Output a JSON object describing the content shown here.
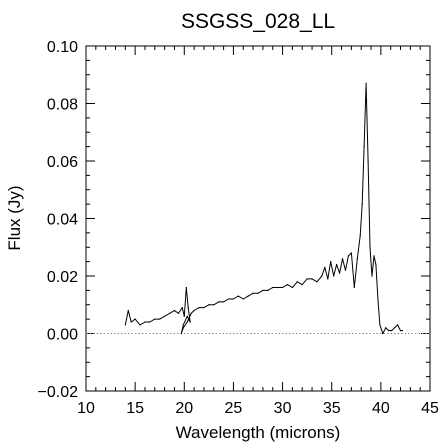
{
  "chart_data": {
    "type": "line",
    "title": "SSGSS_028_LL",
    "xlabel": "Wavelength (microns)",
    "ylabel": "Flux (Jy)",
    "xlim": [
      10,
      45
    ],
    "ylim": [
      -0.02,
      0.1
    ],
    "xticks": [
      "10",
      "15",
      "20",
      "25",
      "30",
      "35",
      "40",
      "45"
    ],
    "yticks": [
      "−0.02",
      "0.00",
      "0.02",
      "0.04",
      "0.06",
      "0.08",
      "0.10"
    ],
    "grid": false,
    "zero_line": {
      "y": 0.0,
      "style": "dotted",
      "color": "#888888"
    },
    "series": [
      {
        "line_color": "#000000",
        "x": [
          14.0,
          14.3,
          14.6,
          15.0,
          15.5,
          16.0,
          16.5,
          17.0,
          17.5,
          18.0,
          18.5,
          19.0,
          19.4,
          19.8,
          20.0,
          20.2,
          20.4,
          20.6,
          20.3,
          19.9,
          19.7,
          19.9,
          20.3,
          20.7,
          21.0,
          21.5,
          22.0,
          22.5,
          23.0,
          23.5,
          24.0,
          24.5,
          25.0,
          25.5,
          26.0,
          26.5,
          27.0,
          27.5,
          28.0,
          28.5,
          29.0,
          29.5,
          30.0,
          30.5,
          31.0,
          31.5,
          32.0,
          32.5,
          33.0,
          33.5,
          34.0,
          34.3,
          34.6,
          34.9,
          35.2,
          35.5,
          35.8,
          36.1,
          36.4,
          36.7,
          37.0,
          37.3,
          37.6,
          37.9,
          38.1,
          38.3,
          38.5,
          38.7,
          38.9,
          39.1,
          39.3,
          39.5,
          39.7,
          39.9,
          40.2,
          40.5,
          40.8,
          41.1,
          41.4,
          41.7,
          42.0,
          42.2
        ],
        "y": [
          0.003,
          0.008,
          0.004,
          0.005,
          0.003,
          0.004,
          0.004,
          0.005,
          0.005,
          0.006,
          0.007,
          0.008,
          0.007,
          0.009,
          0.006,
          0.016,
          0.009,
          0.004,
          0.006,
          0.003,
          0.0,
          0.002,
          0.004,
          0.007,
          0.008,
          0.009,
          0.009,
          0.01,
          0.01,
          0.011,
          0.011,
          0.012,
          0.012,
          0.013,
          0.012,
          0.013,
          0.014,
          0.014,
          0.015,
          0.015,
          0.016,
          0.016,
          0.016,
          0.017,
          0.016,
          0.018,
          0.017,
          0.019,
          0.019,
          0.018,
          0.02,
          0.023,
          0.019,
          0.025,
          0.02,
          0.024,
          0.021,
          0.026,
          0.022,
          0.027,
          0.028,
          0.016,
          0.026,
          0.034,
          0.045,
          0.065,
          0.087,
          0.06,
          0.03,
          0.02,
          0.027,
          0.024,
          0.012,
          0.003,
          0.0,
          0.002,
          0.001,
          0.001,
          0.002,
          0.003,
          0.001,
          0.001
        ]
      }
    ]
  }
}
